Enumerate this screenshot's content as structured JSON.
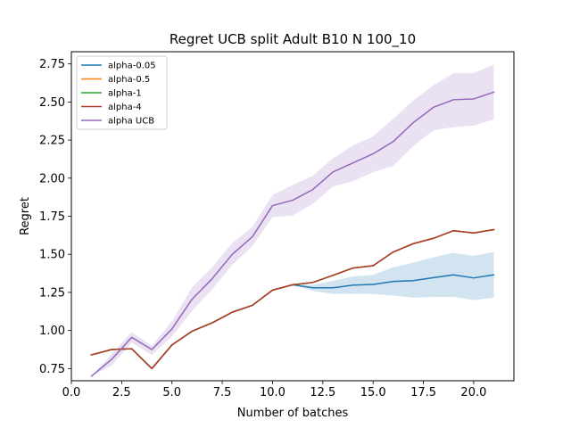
{
  "chart_data": {
    "type": "line",
    "title": "Regret UCB split Adult B10 N 100_10",
    "xlabel": "Number of batches",
    "ylabel": "Regret",
    "xlim": [
      0.0,
      22.0
    ],
    "ylim": [
      0.67,
      2.83
    ],
    "xticks": [
      0.0,
      2.5,
      5.0,
      7.5,
      10.0,
      12.5,
      15.0,
      17.5,
      20.0
    ],
    "xtick_labels": [
      "0.0",
      "2.5",
      "5.0",
      "7.5",
      "10.0",
      "12.5",
      "15.0",
      "17.5",
      "20.0"
    ],
    "yticks": [
      0.75,
      1.0,
      1.25,
      1.5,
      1.75,
      2.0,
      2.25,
      2.5,
      2.75
    ],
    "ytick_labels": [
      "0.75",
      "1.00",
      "1.25",
      "1.50",
      "1.75",
      "2.00",
      "2.25",
      "2.50",
      "2.75"
    ],
    "grid": false,
    "legend_position": "upper-left",
    "x": [
      1,
      2,
      3,
      4,
      5,
      6,
      7,
      8,
      9,
      10,
      11,
      12,
      13,
      14,
      15,
      16,
      17,
      18,
      19,
      20,
      21
    ],
    "series": [
      {
        "name": "alpha-0.05",
        "color": "#1f77b4",
        "values": [
          0.84,
          0.875,
          0.88,
          0.75,
          0.905,
          0.995,
          1.05,
          1.12,
          1.165,
          1.265,
          1.3,
          1.28,
          1.28,
          1.298,
          1.302,
          1.322,
          1.327,
          1.347,
          1.365,
          1.345,
          1.365
        ],
        "band_low": [
          0.84,
          0.875,
          0.88,
          0.75,
          0.905,
          0.995,
          1.05,
          1.12,
          1.165,
          1.265,
          1.3,
          1.26,
          1.24,
          1.24,
          1.24,
          1.23,
          1.215,
          1.22,
          1.22,
          1.2,
          1.215
        ],
        "band_high": [
          0.84,
          0.875,
          0.88,
          0.75,
          0.905,
          0.995,
          1.05,
          1.12,
          1.165,
          1.265,
          1.3,
          1.3,
          1.325,
          1.355,
          1.365,
          1.415,
          1.445,
          1.48,
          1.51,
          1.49,
          1.515
        ]
      },
      {
        "name": "alpha-0.5",
        "color": "#ff7f0e",
        "values": [
          0.84,
          0.875,
          0.88,
          0.75,
          0.905,
          0.995,
          1.05,
          1.12,
          1.165,
          1.265,
          1.3,
          1.315,
          1.362,
          1.41,
          1.425,
          1.515,
          1.57,
          1.605,
          1.655,
          1.64,
          1.662
        ]
      },
      {
        "name": "alpha-1",
        "color": "#2ca02c",
        "values": [
          0.84,
          0.875,
          0.88,
          0.75,
          0.905,
          0.995,
          1.05,
          1.12,
          1.165,
          1.265,
          1.3,
          1.315,
          1.362,
          1.41,
          1.425,
          1.515,
          1.57,
          1.605,
          1.655,
          1.64,
          1.662
        ]
      },
      {
        "name": "alpha-4",
        "color": "#b13a2b",
        "values": [
          0.84,
          0.875,
          0.88,
          0.75,
          0.905,
          0.995,
          1.05,
          1.12,
          1.165,
          1.265,
          1.3,
          1.315,
          1.362,
          1.41,
          1.425,
          1.515,
          1.57,
          1.605,
          1.655,
          1.64,
          1.662
        ]
      },
      {
        "name": "alpha UCB",
        "color": "#9467bd",
        "values": [
          0.7,
          0.81,
          0.955,
          0.875,
          1.01,
          1.205,
          1.34,
          1.5,
          1.615,
          1.82,
          1.855,
          1.925,
          2.04,
          2.1,
          2.16,
          2.24,
          2.365,
          2.465,
          2.515,
          2.52,
          2.565
        ],
        "band_low": [
          0.7,
          0.77,
          0.92,
          0.84,
          0.96,
          1.13,
          1.27,
          1.43,
          1.555,
          1.745,
          1.755,
          1.83,
          1.945,
          1.98,
          2.04,
          2.08,
          2.21,
          2.315,
          2.335,
          2.345,
          2.385
        ],
        "band_high": [
          0.7,
          0.845,
          0.99,
          0.9,
          1.06,
          1.285,
          1.415,
          1.575,
          1.68,
          1.89,
          1.955,
          2.015,
          2.13,
          2.215,
          2.275,
          2.39,
          2.51,
          2.61,
          2.69,
          2.69,
          2.745
        ]
      }
    ]
  }
}
